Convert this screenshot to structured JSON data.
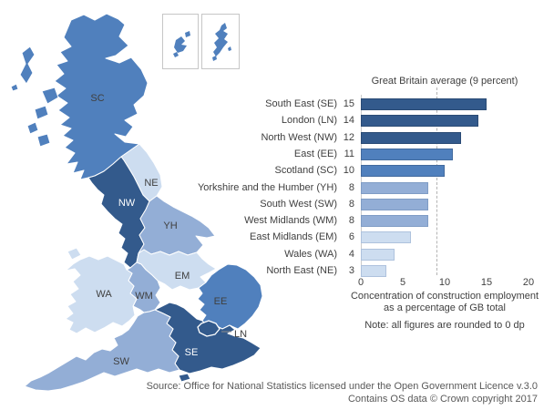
{
  "palette": {
    "fills": {
      "dark": "#335a8c",
      "medium": "#5080bd",
      "medium_light": "#93aed6",
      "light": "#cdddf0"
    },
    "borders": {
      "dark": "#2a4b75",
      "medium": "#426a9e",
      "medium_light": "#7f9cc5",
      "light": "#aec2dd"
    },
    "label_dark": "#404040",
    "label_light": "#ffffff",
    "average_line": "#b3b3b3",
    "axis_line": "#cccccc",
    "leader_line": "#8c8c8c",
    "inset_border": "#c6c6c6",
    "footer_text": "#595959"
  },
  "chart_data": {
    "type": "bar",
    "orientation": "horizontal",
    "title": "Great Britain average (9 percent)",
    "average_value": 9,
    "categories": [
      "South East (SE)",
      "London (LN)",
      "North West (NW)",
      "East (EE)",
      "Scotland (SC)",
      "Yorkshire and the Humber (YH)",
      "South West (SW)",
      "West Midlands (WM)",
      "East Midlands (EM)",
      "Wales (WA)",
      "North East (NE)"
    ],
    "values": [
      15,
      14,
      12,
      11,
      10,
      8,
      8,
      8,
      6,
      4,
      3
    ],
    "color_classes": [
      "dark",
      "dark",
      "dark",
      "medium",
      "medium",
      "medium_light",
      "medium_light",
      "medium_light",
      "light",
      "light",
      "light"
    ],
    "x_ticks": [
      0,
      5,
      10,
      15,
      20
    ],
    "xlim": [
      0,
      20
    ],
    "grid": false,
    "legend": false,
    "xlabel_line1": "Concentration of construction employment",
    "xlabel_line2": "as a percentage of GB total",
    "note": "Note: all figures are rounded to 0 dp"
  },
  "map": {
    "labels": {
      "SC": "SC",
      "NE": "NE",
      "NW": "NW",
      "YH": "YH",
      "EM": "EM",
      "WM": "WM",
      "WA": "WA",
      "EE": "EE",
      "LN": "LN",
      "SE": "SE",
      "SW": "SW"
    },
    "regions": [
      {
        "code": "SC",
        "name": "Scotland",
        "value": 10,
        "color_class": "medium",
        "label_color": "dark"
      },
      {
        "code": "NE",
        "name": "North East",
        "value": 3,
        "color_class": "light",
        "label_color": "dark"
      },
      {
        "code": "NW",
        "name": "North West",
        "value": 12,
        "color_class": "dark",
        "label_color": "light"
      },
      {
        "code": "YH",
        "name": "Yorkshire and the Humber",
        "value": 8,
        "color_class": "medium_light",
        "label_color": "dark"
      },
      {
        "code": "EM",
        "name": "East Midlands",
        "value": 6,
        "color_class": "light",
        "label_color": "dark"
      },
      {
        "code": "WM",
        "name": "West Midlands",
        "value": 8,
        "color_class": "medium_light",
        "label_color": "dark"
      },
      {
        "code": "WA",
        "name": "Wales",
        "value": 4,
        "color_class": "light",
        "label_color": "dark"
      },
      {
        "code": "EE",
        "name": "East",
        "value": 11,
        "color_class": "medium",
        "label_color": "dark"
      },
      {
        "code": "LN",
        "name": "London",
        "value": 14,
        "color_class": "dark",
        "label_color": "dark"
      },
      {
        "code": "SE",
        "name": "South East",
        "value": 15,
        "color_class": "dark",
        "label_color": "light"
      },
      {
        "code": "SW",
        "name": "South West",
        "value": 8,
        "color_class": "medium_light",
        "label_color": "dark"
      }
    ]
  },
  "footer": {
    "source_line1": "Source: Office for National Statistics licensed under the Open Government Licence v.3.0",
    "source_line2": "Contains OS data © Crown copyright 2017"
  }
}
